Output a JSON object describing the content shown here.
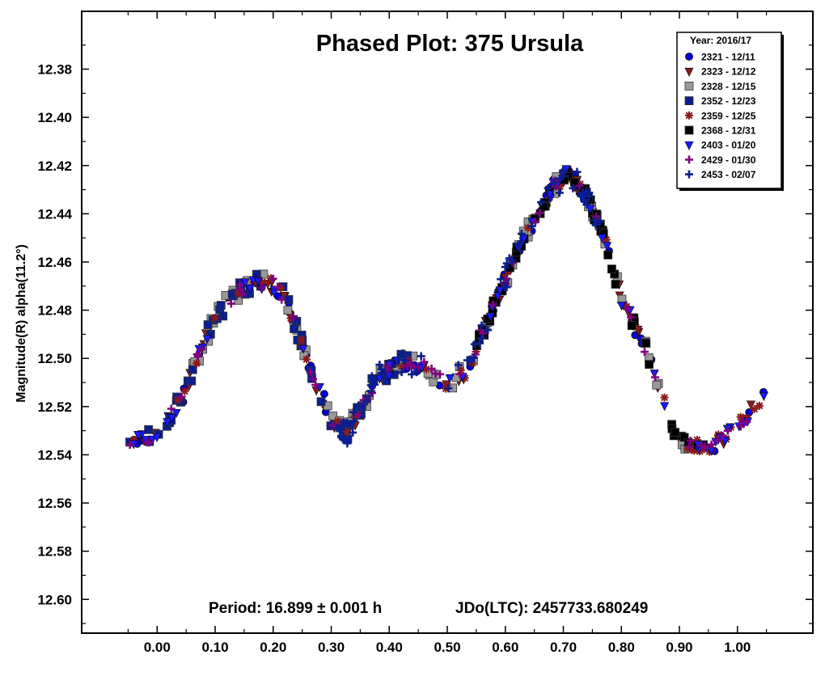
{
  "chart_data": {
    "type": "scatter",
    "title": "Phased Plot: 375 Ursula",
    "ylabel": "Magnitude(R) alpha(11.2°)",
    "xlabel": "",
    "xlim": [
      -0.13,
      1.13
    ],
    "ylim": [
      12.614,
      12.356
    ],
    "y_inverted": true,
    "x_ticks": [
      0.0,
      0.1,
      0.2,
      0.3,
      0.4,
      0.5,
      0.6,
      0.7,
      0.8,
      0.9,
      1.0
    ],
    "x_tick_labels": [
      "0.00",
      "0.10",
      "0.20",
      "0.30",
      "0.40",
      "0.50",
      "0.60",
      "0.70",
      "0.80",
      "0.90",
      "1.00"
    ],
    "y_ticks": [
      12.38,
      12.4,
      12.42,
      12.44,
      12.46,
      12.48,
      12.5,
      12.52,
      12.54,
      12.56,
      12.58,
      12.6
    ],
    "y_tick_labels": [
      "12.38",
      "12.40",
      "12.42",
      "12.44",
      "12.46",
      "12.48",
      "12.50",
      "12.52",
      "12.54",
      "12.56",
      "12.58",
      "12.60"
    ],
    "legend_title": "Year: 2016/17",
    "legend_position": "top-right",
    "grid": false,
    "curve": [
      [
        -0.05,
        12.536
      ],
      [
        0.0,
        12.531
      ],
      [
        0.04,
        12.518
      ],
      [
        0.07,
        12.5
      ],
      [
        0.1,
        12.482
      ],
      [
        0.14,
        12.472
      ],
      [
        0.18,
        12.468
      ],
      [
        0.2,
        12.47
      ],
      [
        0.22,
        12.475
      ],
      [
        0.24,
        12.488
      ],
      [
        0.27,
        12.508
      ],
      [
        0.3,
        12.525
      ],
      [
        0.325,
        12.532
      ],
      [
        0.35,
        12.521
      ],
      [
        0.38,
        12.508
      ],
      [
        0.42,
        12.501
      ],
      [
        0.46,
        12.504
      ],
      [
        0.5,
        12.51
      ],
      [
        0.53,
        12.506
      ],
      [
        0.56,
        12.49
      ],
      [
        0.6,
        12.467
      ],
      [
        0.64,
        12.446
      ],
      [
        0.68,
        12.43
      ],
      [
        0.71,
        12.423
      ],
      [
        0.74,
        12.433
      ],
      [
        0.77,
        12.45
      ],
      [
        0.8,
        12.475
      ],
      [
        0.84,
        12.495
      ],
      [
        0.87,
        12.515
      ],
      [
        0.89,
        12.532
      ],
      [
        0.92,
        12.537
      ],
      [
        0.96,
        12.536
      ],
      [
        1.0,
        12.528
      ],
      [
        1.03,
        12.52
      ],
      [
        1.05,
        12.512
      ]
    ],
    "series": [
      {
        "name": "2321 - 12/11",
        "marker": "circle",
        "color": "#0000dd",
        "x_range": [
          -0.05,
          1.05
        ],
        "jitter": 0.0035
      },
      {
        "name": "2323 - 12/12",
        "marker": "triangle-down",
        "color": "#8b1a1a",
        "x_range": [
          -0.05,
          1.05
        ],
        "jitter": 0.003
      },
      {
        "name": "2328 - 12/15",
        "marker": "square",
        "color": "#999999",
        "x_range": [
          0.05,
          0.93
        ],
        "jitter": 0.004
      },
      {
        "name": "2352 - 12/23",
        "marker": "square",
        "color": "#0a1f8f",
        "x_range": [
          -0.05,
          0.45
        ],
        "jitter": 0.004
      },
      {
        "name": "2359 - 12/25",
        "marker": "asterisk",
        "color": "#8b1a1a",
        "x_range": [
          -0.05,
          1.05
        ],
        "jitter": 0.003
      },
      {
        "name": "2368 - 12/31",
        "marker": "square",
        "color": "#000000",
        "x_range": [
          0.55,
          0.95
        ],
        "jitter": 0.003
      },
      {
        "name": "2403 - 01/20",
        "marker": "triangle-down",
        "color": "#1a1aff",
        "x_range": [
          -0.05,
          1.05
        ],
        "jitter": 0.003
      },
      {
        "name": "2429 - 01/30",
        "marker": "plus",
        "color": "#800080",
        "x_range": [
          -0.05,
          1.05
        ],
        "jitter": 0.003
      },
      {
        "name": "2453 - 02/07",
        "marker": "plus",
        "color": "#0a1f8f",
        "x_range": [
          0.3,
          0.78
        ],
        "jitter": 0.005
      }
    ],
    "footer_period": "Period: 16.899 ± 0.001 h",
    "footer_jdo": "JDo(LTC): 2457733.680249"
  }
}
